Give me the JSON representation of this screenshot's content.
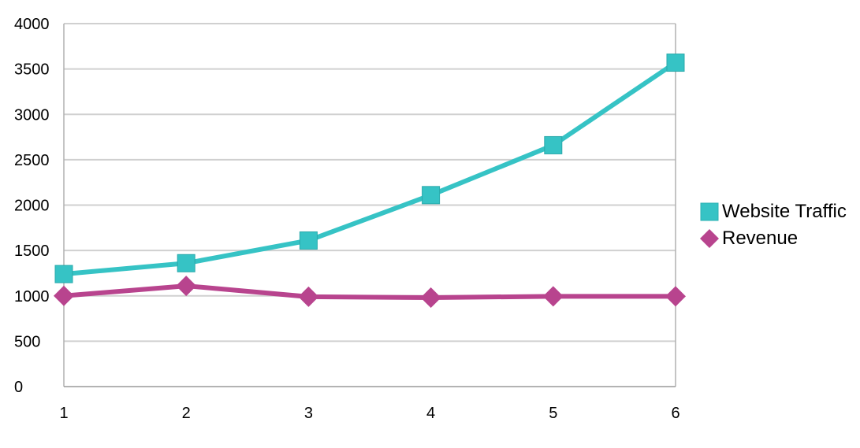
{
  "chart_data": {
    "type": "line",
    "categories": [
      "1",
      "2",
      "3",
      "4",
      "5",
      "6"
    ],
    "series": [
      {
        "name": "Website Traffic",
        "values": [
          1240,
          1360,
          1610,
          2110,
          2660,
          3570
        ],
        "color": "#36c3c5",
        "marker": "square"
      },
      {
        "name": "Revenue",
        "values": [
          1000,
          1110,
          990,
          980,
          995,
          995
        ],
        "color": "#b8448e",
        "marker": "diamond"
      }
    ],
    "title": "",
    "xlabel": "",
    "ylabel": "",
    "ylim": [
      0,
      4000
    ],
    "yticks": [
      "0",
      "500",
      "1000",
      "1500",
      "2000",
      "2500",
      "3000",
      "3500",
      "4000"
    ],
    "grid": true,
    "legend_position": "right"
  }
}
